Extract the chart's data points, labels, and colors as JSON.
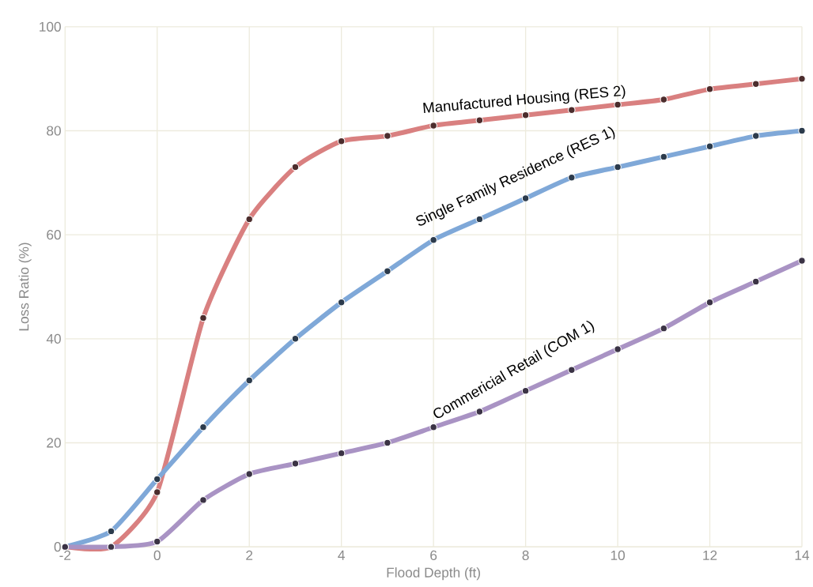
{
  "chart_data": {
    "type": "line",
    "xlabel": "Flood Depth (ft)",
    "ylabel": "Loss Ratio (%)",
    "x": [
      -2,
      -1,
      0,
      1,
      2,
      3,
      4,
      5,
      6,
      7,
      8,
      9,
      10,
      11,
      12,
      13,
      14
    ],
    "series": [
      {
        "name": "Manufactured Housing (RES 2)",
        "color": "#d98080",
        "values": [
          0,
          0,
          10.5,
          44,
          63,
          73,
          78,
          79,
          81,
          82,
          83,
          84,
          85,
          86,
          88,
          89,
          90
        ]
      },
      {
        "name": "Single Family Residence (RES 1)",
        "color": "#7fa8d8",
        "values": [
          0,
          3,
          13,
          23,
          32,
          40,
          47,
          53,
          59,
          63,
          67,
          71,
          73,
          75,
          77,
          79,
          80
        ]
      },
      {
        "name": "Commericial Retail (COM 1)",
        "color": "#a993c4",
        "values": [
          0,
          0,
          1,
          9,
          14,
          16,
          18,
          20,
          23,
          26,
          30,
          34,
          38,
          42,
          47,
          51,
          55
        ]
      }
    ],
    "xlim": [
      -2,
      14
    ],
    "ylim": [
      0,
      100
    ],
    "xticks": [
      -2,
      0,
      2,
      4,
      6,
      8,
      10,
      12,
      14
    ],
    "yticks": [
      0,
      20,
      40,
      60,
      80,
      100
    ],
    "grid": true,
    "marker": "circle",
    "line_style": "solid"
  }
}
